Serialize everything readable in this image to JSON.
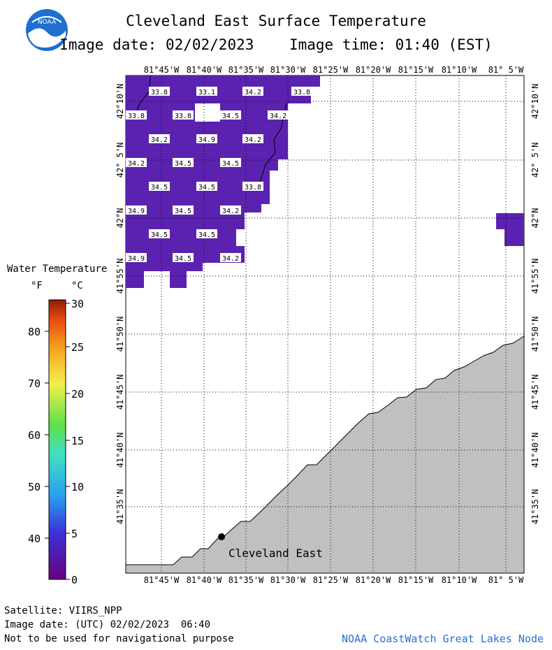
{
  "header": {
    "title": "Cleveland East Surface Temperature",
    "image_date_label": "Image date: 02/02/2023",
    "image_time_label": "Image time: 01:40 (EST)"
  },
  "logo": {
    "text": "NOAA",
    "icon": "noaa-logo-icon"
  },
  "map": {
    "longitude_labels": [
      "81°45'W",
      "81°40'W",
      "81°35'W",
      "81°30'W",
      "81°25'W",
      "81°20'W",
      "81°15'W",
      "81°10'W",
      "81° 5'W"
    ],
    "latitude_labels": [
      "42°10'N",
      "42° 5'N",
      "42°N",
      "41°55'N",
      "41°50'N",
      "41°45'N",
      "41°40'N",
      "41°35'N"
    ],
    "station_label": "Cleveland East",
    "temperature_readings": [
      [
        "33.8",
        "33.1",
        "34.2",
        "33.8"
      ],
      [
        "33.8",
        "33.8",
        "34.5",
        "34.2"
      ],
      [
        "34.2",
        "34.9",
        "34.2"
      ],
      [
        "34.2",
        "34.5",
        "34.5"
      ],
      [
        "34.5",
        "34.5",
        "33.8"
      ],
      [
        "34.9",
        "34.5",
        "34.2"
      ],
      [
        "34.5",
        "34.5"
      ],
      [
        "34.9",
        "34.5",
        "34.2"
      ]
    ],
    "colors": {
      "water": "#5b22b0",
      "land": "#c0c0c0",
      "grid": "#000000"
    }
  },
  "legend": {
    "title": "Water Temperature",
    "unit_f": "°F",
    "unit_c": "°C",
    "f_ticks": [
      "80",
      "70",
      "60",
      "50",
      "40"
    ],
    "c_ticks": [
      "30",
      "25",
      "20",
      "15",
      "10",
      "5",
      "0"
    ]
  },
  "footer": {
    "satellite": "Satellite: VIIRS_NPP",
    "utc_date": "Image date: (UTC) 02/02/2023  06:40",
    "disclaimer": "Not to be used for navigational purpose",
    "credit": "NOAA CoastWatch Great Lakes Node"
  }
}
